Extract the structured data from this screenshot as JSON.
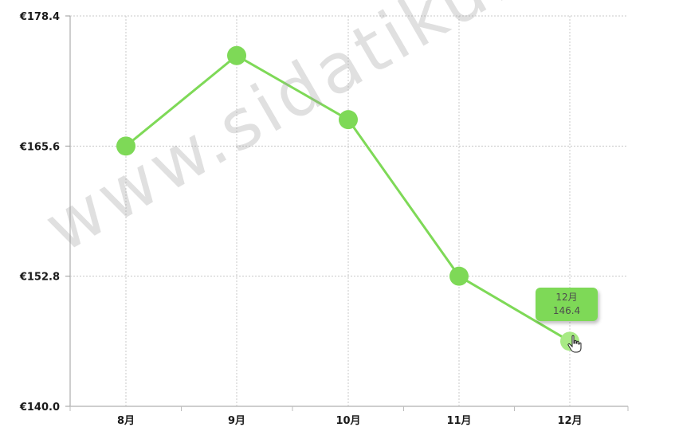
{
  "chart_data": {
    "type": "line",
    "categories": [
      "8月",
      "9月",
      "10月",
      "11月",
      "12月"
    ],
    "values": [
      165.6,
      174.5,
      168.2,
      152.8,
      146.4
    ],
    "ylim": [
      140.0,
      178.4
    ],
    "yticks": [
      140.0,
      152.8,
      165.6,
      178.4
    ],
    "ytick_labels": [
      "€140.0",
      "€152.8",
      "€165.6",
      "€178.4"
    ],
    "grid": true,
    "line_color": "#7ed957",
    "marker_color": "#7ed957"
  },
  "tooltip": {
    "category": "12月",
    "value": "146.4"
  },
  "watermark": {
    "text": "www.sidatiku.com"
  }
}
